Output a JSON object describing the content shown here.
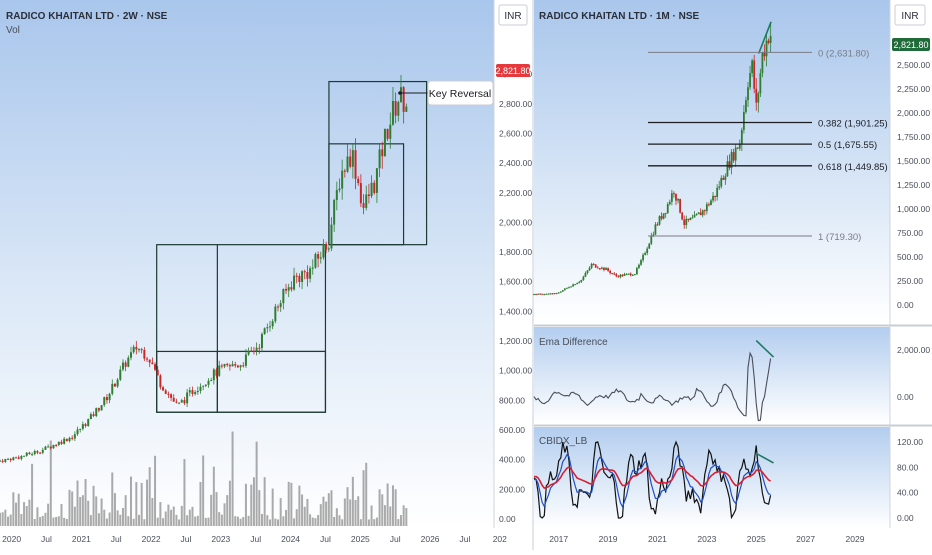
{
  "left_panel": {
    "title": "RADICO KHAITAN LTD · 2W · NSE",
    "volume_label": "Vol",
    "currency": "INR",
    "price_badge": "2,821.80",
    "annotation": "Key Reversal",
    "y_ticks": [
      "3,000.00",
      "2,800.00",
      "2,600.00",
      "2,400.00",
      "2,200.00",
      "2,000.00",
      "1,800.00",
      "1,600.00",
      "1,400.00",
      "1,200.00",
      "1,000.00",
      "800.00",
      "600.00",
      "400.00",
      "200.00",
      "0.00"
    ],
    "x_ticks": [
      "2020",
      "Jul",
      "2021",
      "Jul",
      "2022",
      "Jul",
      "2023",
      "Jul",
      "2024",
      "Jul",
      "2025",
      "Jul",
      "2026",
      "Jul",
      "202"
    ],
    "chart_data": {
      "type": "candlestick",
      "x_range": [
        "2019-11",
        "2026-12"
      ],
      "ylim": [
        0,
        3150
      ],
      "grid": false,
      "price_path": [
        [
          "2019-11",
          390
        ],
        [
          "2020-03",
          420
        ],
        [
          "2020-07",
          470
        ],
        [
          "2020-12",
          560
        ],
        [
          "2021-03",
          680
        ],
        [
          "2021-06",
          830
        ],
        [
          "2021-09",
          1050
        ],
        [
          "2021-11",
          1160
        ],
        [
          "2022-01",
          1100
        ],
        [
          "2022-03",
          920
        ],
        [
          "2022-06",
          760
        ],
        [
          "2022-09",
          880
        ],
        [
          "2023-01",
          1000
        ],
        [
          "2023-05",
          1050
        ],
        [
          "2023-08",
          1180
        ],
        [
          "2023-11",
          1420
        ],
        [
          "2024-02",
          1620
        ],
        [
          "2024-05",
          1680
        ],
        [
          "2024-08",
          1880
        ],
        [
          "2024-10",
          2320
        ],
        [
          "2024-12",
          2480
        ],
        [
          "2025-02",
          2100
        ],
        [
          "2025-04",
          2280
        ],
        [
          "2025-06",
          2620
        ],
        [
          "2025-08",
          2840
        ],
        [
          "2025-09",
          2822
        ]
      ],
      "volume_ylim": [
        0,
        600
      ],
      "boxes_price_ranges": [
        [
          720,
          1850
        ],
        [
          720,
          1130
        ],
        [
          1850,
          2950
        ],
        [
          1850,
          2530
        ]
      ]
    }
  },
  "right_panel": {
    "title": "RADICO KHAITAN LTD · 1M · NSE",
    "currency": "INR",
    "price_badge": "2,821.80",
    "y_ticks": [
      "2,750.00",
      "2,500.00",
      "2,250.00",
      "2,000.00",
      "1,750.00",
      "1,500.00",
      "1,250.00",
      "1,000.00",
      "750.00",
      "500.00",
      "250.00",
      "0.00"
    ],
    "x_ticks": [
      "2017",
      "2019",
      "2021",
      "2023",
      "2025",
      "2027",
      "2029"
    ],
    "fib_levels": [
      {
        "label": "0 (2,631.80)",
        "value": 2631.8,
        "dark": false
      },
      {
        "label": "0.382 (1,901.25)",
        "value": 1901.25,
        "dark": true
      },
      {
        "label": "0.5 (1,675.55)",
        "value": 1675.55,
        "dark": true
      },
      {
        "label": "0.618 (1,449.85)",
        "value": 1449.85,
        "dark": true
      },
      {
        "label": "1 (719.30)",
        "value": 719.3,
        "dark": false
      }
    ],
    "ema_panel": {
      "label": "Ema Difference",
      "y_ticks": [
        "2,000.00",
        "0.00"
      ]
    },
    "cbidx_panel": {
      "label": "CBIDX_LB",
      "y_ticks": [
        "120.00",
        "80.00",
        "40.00",
        "0.00"
      ]
    },
    "chart_data": {
      "type": "candlestick",
      "x_range": [
        "2016-01",
        "2030-06"
      ],
      "ylim": [
        -100,
        2950
      ],
      "price_path": [
        [
          "2016-01",
          110
        ],
        [
          "2017-01",
          120
        ],
        [
          "2018-01",
          260
        ],
        [
          "2018-06",
          420
        ],
        [
          "2019-01",
          370
        ],
        [
          "2019-06",
          300
        ],
        [
          "2020-03",
          330
        ],
        [
          "2020-06",
          450
        ],
        [
          "2021-01",
          820
        ],
        [
          "2021-06",
          1000
        ],
        [
          "2021-10",
          1200
        ],
        [
          "2022-03",
          850
        ],
        [
          "2022-08",
          900
        ],
        [
          "2023-01",
          1000
        ],
        [
          "2023-06",
          1150
        ],
        [
          "2023-12",
          1450
        ],
        [
          "2024-06",
          1700
        ],
        [
          "2024-10",
          2350
        ],
        [
          "2024-12",
          2480
        ],
        [
          "2025-02",
          2050
        ],
        [
          "2025-05",
          2600
        ],
        [
          "2025-08",
          2822
        ]
      ]
    }
  }
}
